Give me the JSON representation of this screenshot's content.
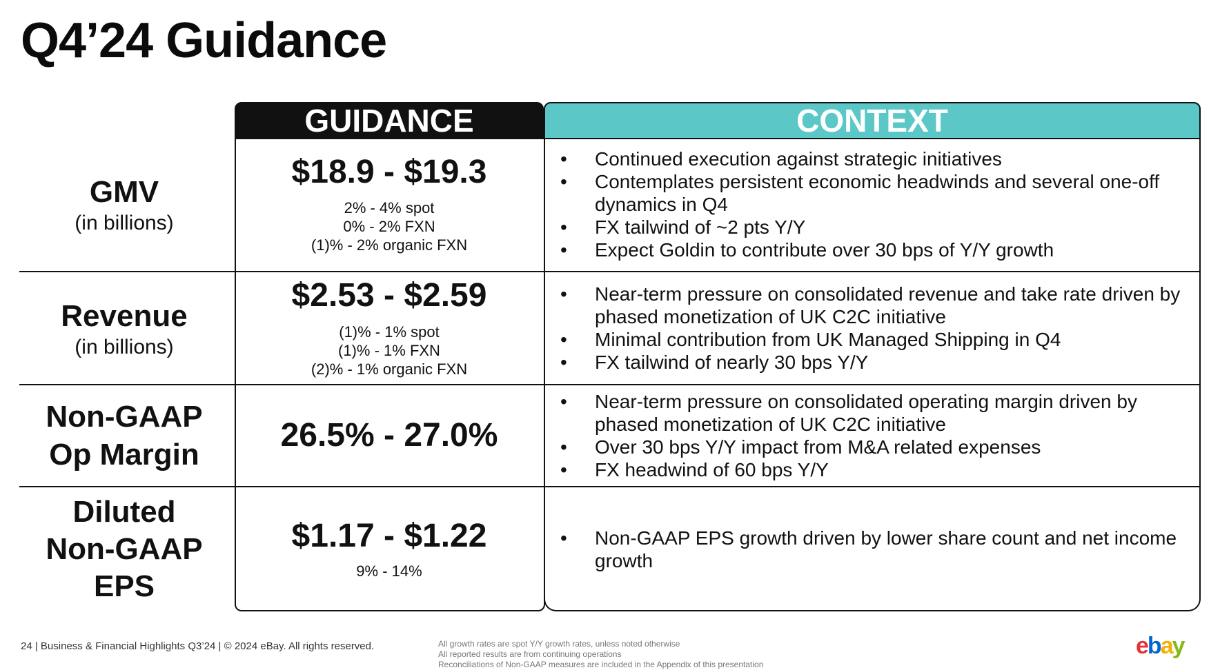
{
  "title": "Q4’24 Guidance",
  "headers": {
    "guidance": "GUIDANCE",
    "context": "CONTEXT"
  },
  "rows": [
    {
      "label_main": "GMV",
      "label_sub": "(in billions)",
      "guidance_big": "$18.9 - $19.3",
      "guidance_lines": [
        "2% - 4% spot",
        "0% - 2% FXN",
        "(1)% - 2% organic FXN"
      ],
      "context": [
        "Continued execution against strategic initiatives",
        "Contemplates persistent economic headwinds and several one-off dynamics in Q4",
        "FX tailwind of ~2 pts Y/Y",
        "Expect Goldin to contribute over 30 bps of Y/Y growth"
      ]
    },
    {
      "label_main": "Revenue",
      "label_sub": "(in billions)",
      "guidance_big": "$2.53 - $2.59",
      "guidance_lines": [
        "(1)% - 1% spot",
        "(1)% - 1% FXN",
        "(2)% - 1% organic FXN"
      ],
      "context": [
        "Near-term pressure on consolidated revenue and take rate driven by phased monetization of UK C2C initiative",
        "Minimal contribution from UK Managed Shipping in Q4",
        "FX tailwind of nearly 30 bps Y/Y"
      ]
    },
    {
      "label_main": "Non-GAAP Op Margin",
      "guidance_big": "26.5% - 27.0%",
      "context": [
        "Near-term pressure on consolidated operating margin driven by phased monetization of UK C2C initiative",
        "Over 30 bps Y/Y impact from M&A related expenses",
        "FX headwind of 60 bps Y/Y"
      ]
    },
    {
      "label_main": "Diluted Non-GAAP EPS",
      "guidance_big": "$1.17 - $1.22",
      "guidance_lines": [
        "9% - 14%"
      ],
      "context": [
        "Non-GAAP EPS growth driven by lower share count and net income growth"
      ]
    }
  ],
  "footer": {
    "left": "24 | Business & Financial Highlights Q3’24 | © 2024 eBay. All rights reserved.",
    "notes": [
      "All growth rates are spot Y/Y growth rates, unless noted otherwise",
      "All reported results are from continuing operations",
      "Reconciliations of Non-GAAP measures are included in the Appendix of this presentation"
    ]
  },
  "logo": {
    "e": "e",
    "b": "b",
    "a": "a",
    "y": "y"
  },
  "colors": {
    "context_header": "#5bc7c7",
    "guidance_header": "#111111"
  }
}
